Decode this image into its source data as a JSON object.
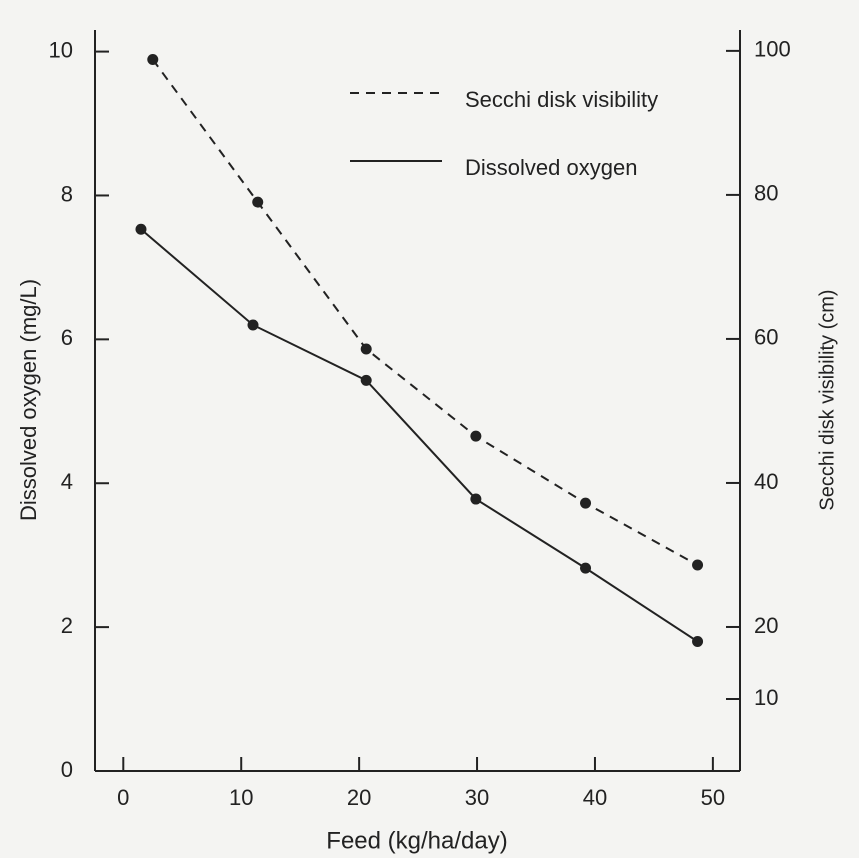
{
  "chart_data": {
    "type": "line",
    "x_label": "Feed (kg/ha/day)",
    "y_label": "Dissolved oxygen (mg/L)",
    "y2_label": "Secchi disk visibility (cm)",
    "xlim": [
      -2.4,
      52.3
    ],
    "xticks": [
      0,
      10,
      20,
      30,
      40,
      50
    ],
    "ylim": [
      0,
      10.3
    ],
    "yticks": [
      0,
      2,
      4,
      6,
      8,
      10
    ],
    "y2lim": [
      0,
      102.9
    ],
    "y2ticks": [
      10,
      20,
      40,
      60,
      80,
      100
    ],
    "series": [
      {
        "name": "Secchi disk visibility",
        "color": "#222222",
        "dashed": true,
        "axis": "y2",
        "x": [
          2.5,
          11.4,
          20.6,
          29.9,
          39.2,
          48.7
        ],
        "values": [
          98.8,
          79,
          58.6,
          46.5,
          37.2,
          28.6
        ]
      },
      {
        "name": "Dissolved oxygen",
        "color": "#222222",
        "dashed": false,
        "x": [
          1.5,
          11,
          20.6,
          29.9,
          39.2,
          48.7
        ],
        "values": [
          7.53,
          6.2,
          5.43,
          3.78,
          2.82,
          1.8
        ]
      }
    ]
  }
}
